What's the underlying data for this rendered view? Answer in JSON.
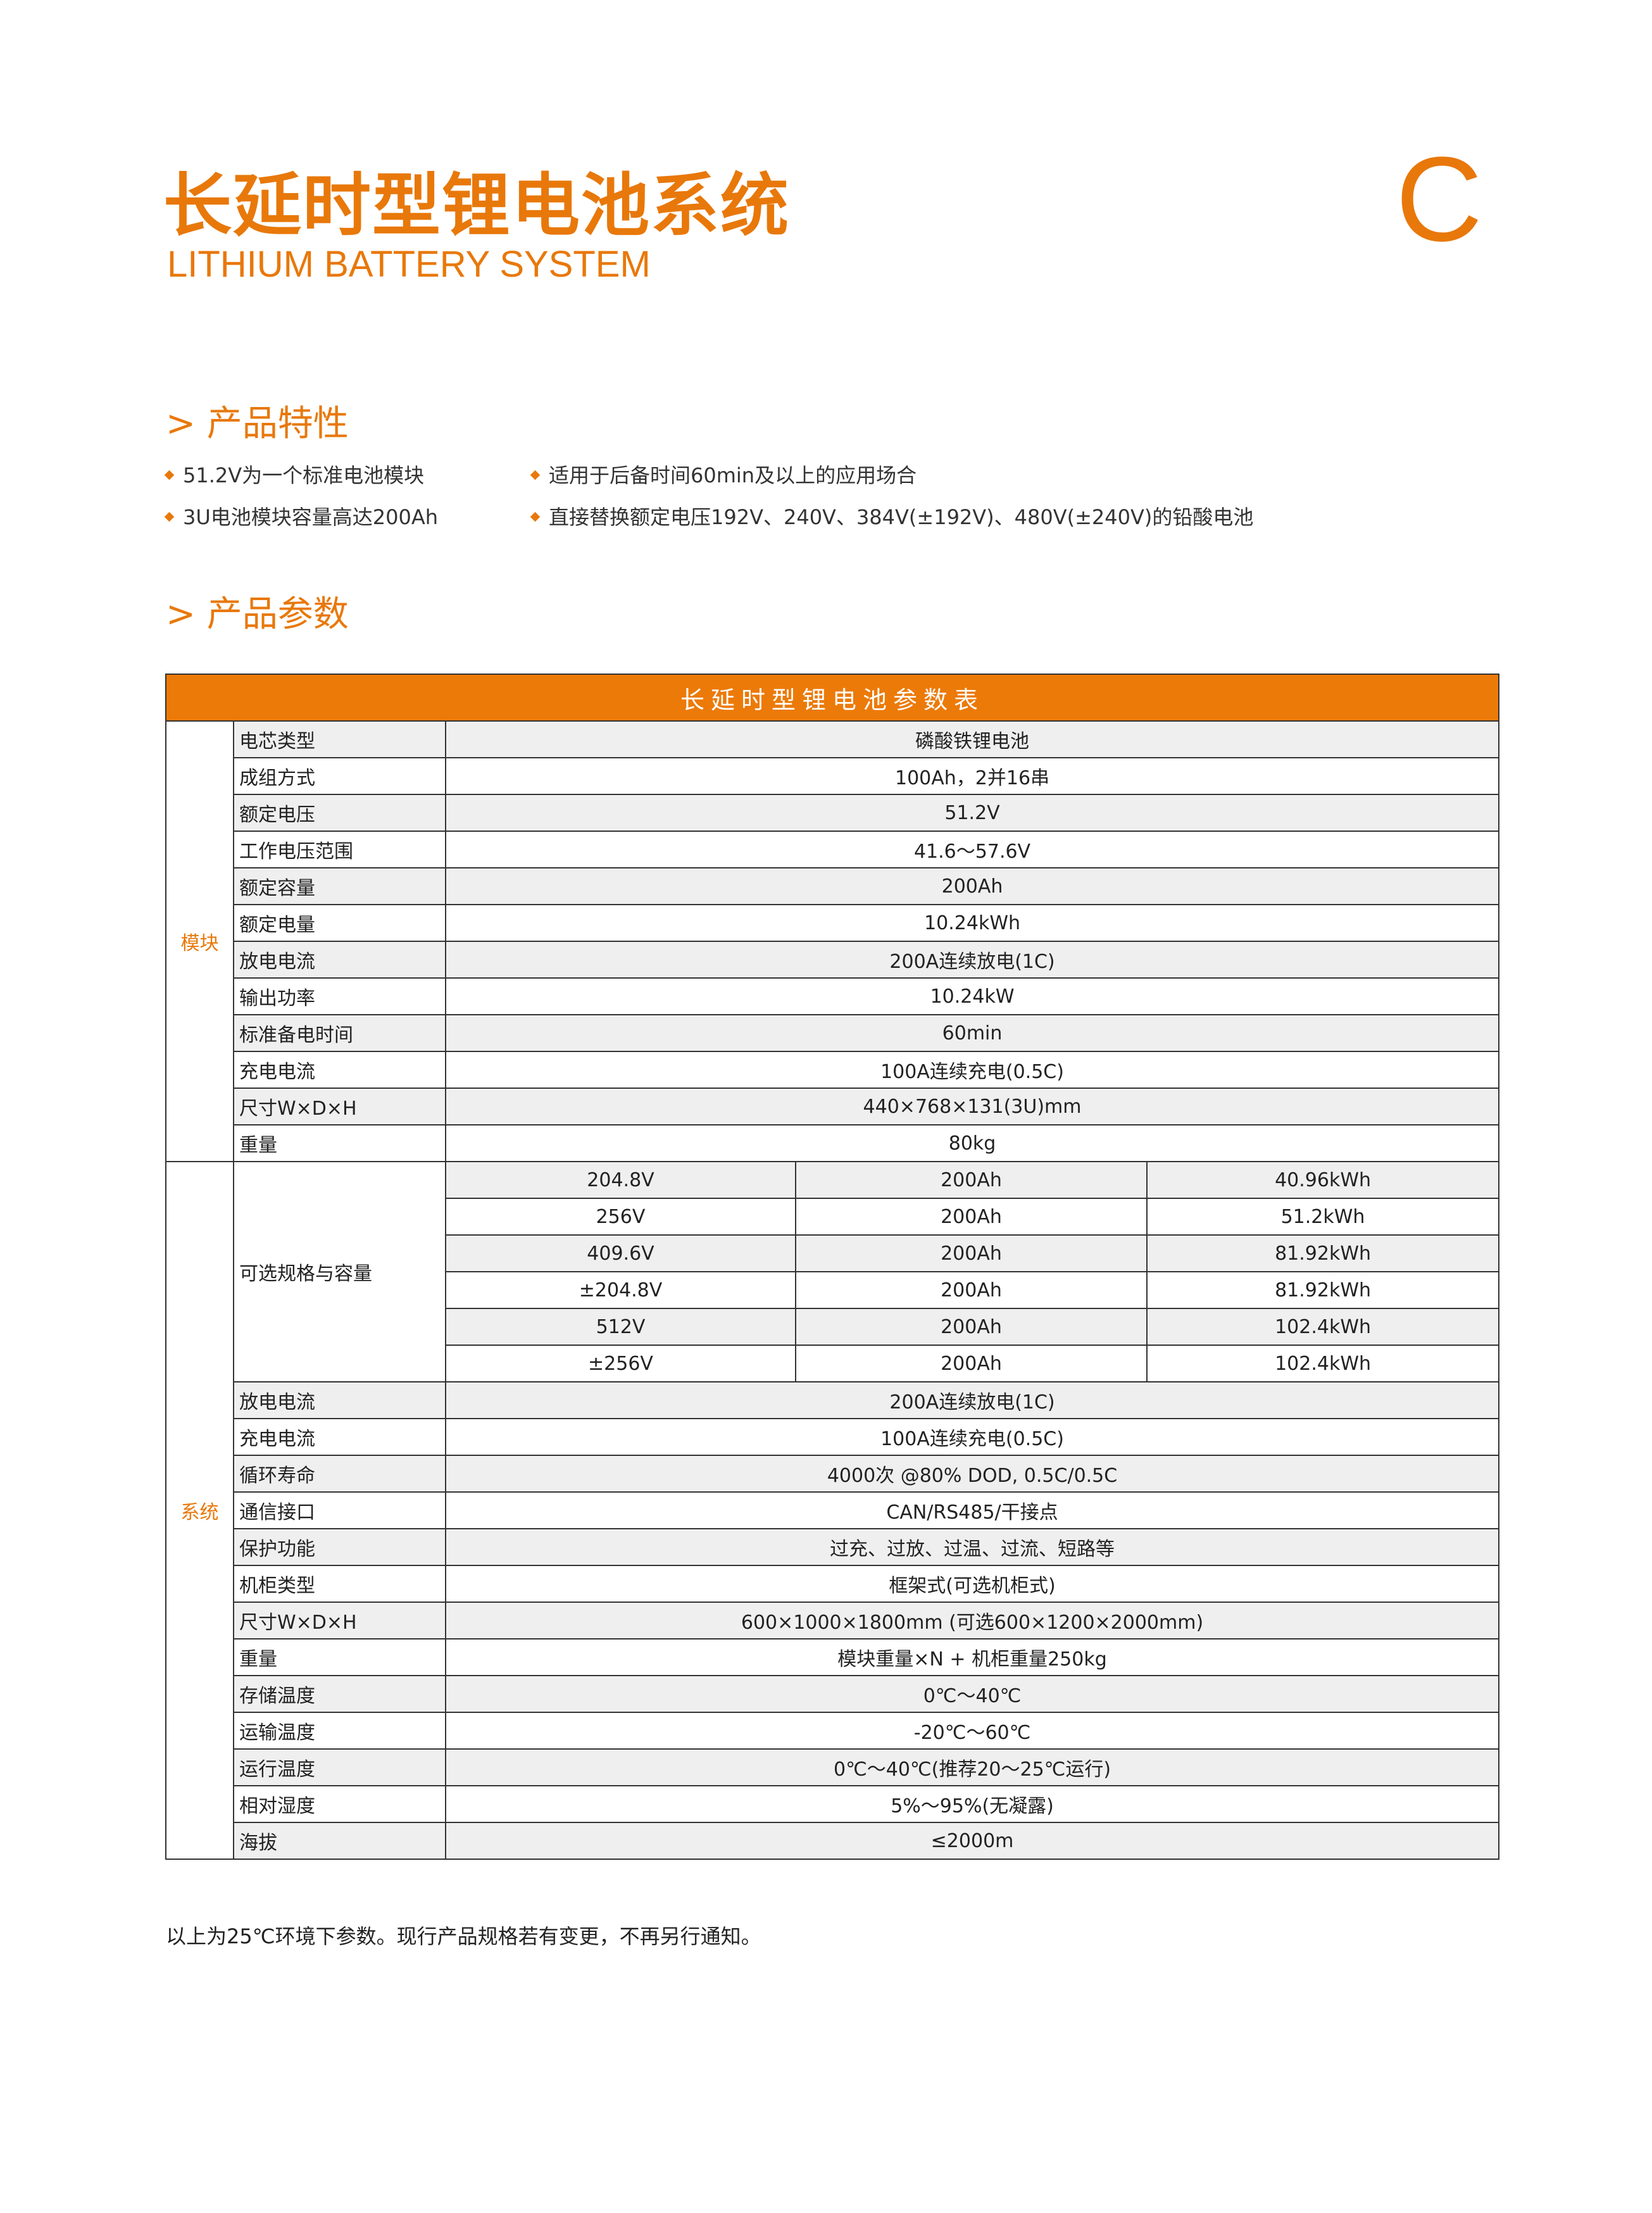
{
  "header": {
    "title": "长延时型锂电池系统",
    "subtitle": "LITHIUM BATTERY SYSTEM",
    "letter": "C"
  },
  "features": {
    "heading": "> 产品特性",
    "items": [
      "51.2V为一个标准电池模块",
      "适用于后备时间60min及以上的应用场合",
      "3U电池模块容量高达200Ah",
      "直接替换额定电压192V、240V、384V(±192V)、480V(±240V)的铅酸电池"
    ]
  },
  "params": {
    "heading": "> 产品参数",
    "table": {
      "title": "长延时型锂电池参数表",
      "module": {
        "name": "模块",
        "rows": [
          [
            "电芯类型",
            "磷酸铁锂电池"
          ],
          [
            "成组方式",
            "100Ah，2并16串"
          ],
          [
            "额定电压",
            "51.2V"
          ],
          [
            "工作电压范围",
            "41.6～57.6V"
          ],
          [
            "额定容量",
            "200Ah"
          ],
          [
            "额定电量",
            "10.24kWh"
          ],
          [
            "放电电流",
            "200A连续放电(1C)"
          ],
          [
            "输出功率",
            "10.24kW"
          ],
          [
            "标准备电时间",
            "60min"
          ],
          [
            "充电电流",
            "100A连续充电(0.5C)"
          ],
          [
            "尺寸W×D×H",
            "440×768×131(3U)mm"
          ],
          [
            "重量",
            "80kg"
          ]
        ]
      },
      "system": {
        "name": "系统",
        "options": {
          "label": "可选规格与容量",
          "rows": [
            [
              "204.8V",
              "200Ah",
              "40.96kWh"
            ],
            [
              "256V",
              "200Ah",
              "51.2kWh"
            ],
            [
              "409.6V",
              "200Ah",
              "81.92kWh"
            ],
            [
              "±204.8V",
              "200Ah",
              "81.92kWh"
            ],
            [
              "512V",
              "200Ah",
              "102.4kWh"
            ],
            [
              "±256V",
              "200Ah",
              "102.4kWh"
            ]
          ]
        },
        "rows": [
          [
            "放电电流",
            "200A连续放电(1C)"
          ],
          [
            "充电电流",
            "100A连续充电(0.5C)"
          ],
          [
            "循环寿命",
            "4000次 @80% DOD, 0.5C/0.5C"
          ],
          [
            "通信接口",
            "CAN/RS485/干接点"
          ],
          [
            "保护功能",
            "过充、过放、过温、过流、短路等"
          ],
          [
            "机柜类型",
            "框架式(可选机柜式)"
          ],
          [
            "尺寸W×D×H",
            "600×1000×1800mm (可选600×1200×2000mm)"
          ],
          [
            "重量",
            "模块重量×N + 机柜重量250kg"
          ],
          [
            "存储温度",
            "0℃～40℃"
          ],
          [
            "运输温度",
            "-20℃～60℃"
          ],
          [
            "运行温度",
            "0℃～40℃(推荐20～25℃运行)"
          ],
          [
            "相对湿度",
            "5%～95%(无凝露)"
          ],
          [
            "海拔",
            "≤2000m"
          ]
        ]
      }
    },
    "footnote": "以上为25℃环境下参数。现行产品规格若有变更，不再另行通知。"
  }
}
